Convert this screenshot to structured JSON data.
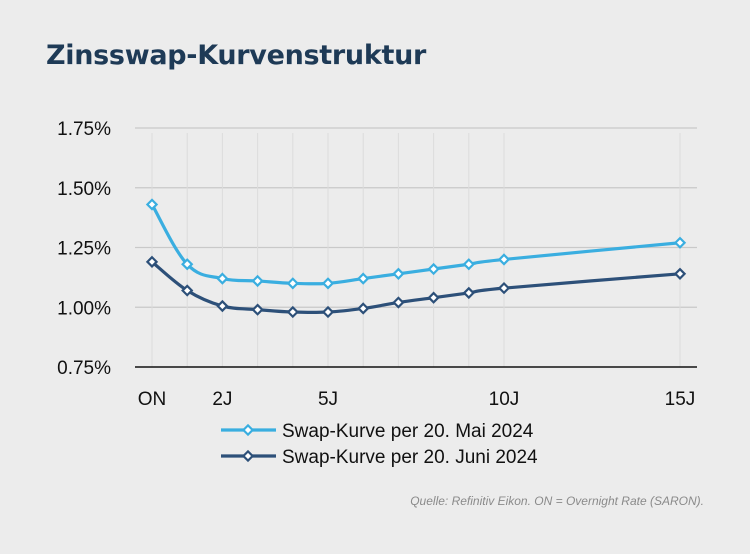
{
  "title": "Zinsswap-Kurvenstruktur",
  "source_note": "Quelle: Refinitiv Eikon. ON = Overnight Rate (SARON).",
  "colors": {
    "series1": "#3aaee0",
    "series2": "#2d5079",
    "grid": "#c9c9c9",
    "axis": "#111111"
  },
  "chart_data": {
    "type": "line",
    "title": "Zinsswap-Kurvenstruktur",
    "xlabel": "",
    "ylabel": "",
    "ylim": [
      0.75,
      1.75
    ],
    "yticks": [
      "0.75%",
      "1.00%",
      "1.25%",
      "1.50%",
      "1.75%"
    ],
    "x": [
      0,
      1,
      2,
      3,
      4,
      5,
      6,
      7,
      8,
      9,
      10,
      15
    ],
    "xtick_values": [
      0,
      2,
      5,
      10,
      15
    ],
    "xtick_labels": [
      "ON",
      "2J",
      "5J",
      "10J",
      "15J"
    ],
    "grid": true,
    "legend": "bottom",
    "series": [
      {
        "name": "Swap-Kurve per 20. Mai 2024",
        "color": "#3aaee0",
        "values": [
          1.43,
          1.18,
          1.12,
          1.11,
          1.1,
          1.1,
          1.12,
          1.14,
          1.16,
          1.18,
          1.2,
          1.27
        ]
      },
      {
        "name": "Swap-Kurve per 20. Juni 2024",
        "color": "#2d5079",
        "values": [
          1.19,
          1.07,
          1.005,
          0.99,
          0.98,
          0.98,
          0.995,
          1.02,
          1.04,
          1.06,
          1.08,
          1.14
        ]
      }
    ]
  }
}
